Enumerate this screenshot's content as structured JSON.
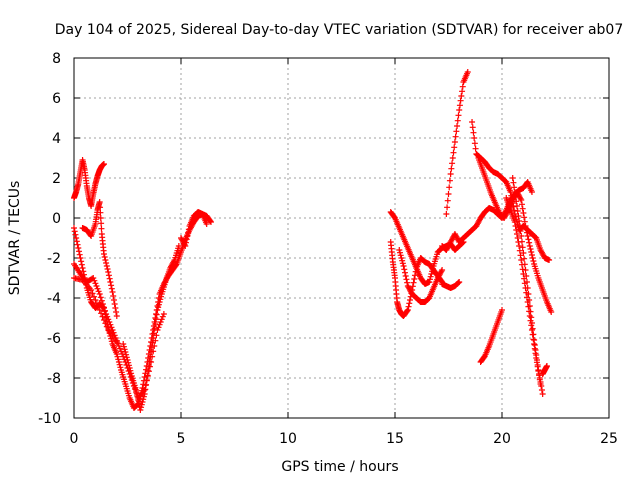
{
  "chart_data": {
    "type": "scatter",
    "title": "Day 104 of 2025, Sidereal Day-to-day VTEC variation (SDTVAR) for receiver ab07",
    "xlabel": "GPS time / hours",
    "ylabel": "SDTVAR / TECUs",
    "xlim": [
      0,
      25
    ],
    "ylim": [
      -10,
      8
    ],
    "xticks": [
      "0",
      "5",
      "10",
      "15",
      "20",
      "25"
    ],
    "yticks": [
      "-10",
      "-8",
      "-6",
      "-4",
      "-2",
      "0",
      "2",
      "4",
      "6",
      "8"
    ],
    "grid": true,
    "marker": "+",
    "color": "#ff0000",
    "series": [
      {
        "x": [
          0.0,
          0.1,
          0.2,
          0.3,
          0.4,
          0.5,
          0.6,
          0.7,
          0.8,
          0.9,
          1.0,
          1.1,
          1.2,
          1.3,
          1.4
        ],
        "y": [
          1.0,
          1.3,
          1.7,
          2.3,
          2.9,
          2.4,
          1.6,
          1.0,
          0.6,
          1.2,
          1.7,
          2.1,
          2.4,
          2.6,
          2.7
        ]
      },
      {
        "x": [
          0.0,
          0.2,
          0.4,
          0.6,
          0.8,
          1.0,
          1.2,
          1.4,
          1.6,
          1.8,
          2.0,
          2.2,
          2.4,
          2.6,
          2.8,
          3.0,
          3.2,
          3.4,
          3.6,
          3.8,
          4.0,
          4.2,
          4.4,
          4.6,
          4.8,
          5.0,
          5.2,
          5.4,
          5.6,
          5.8,
          6.0,
          6.2,
          6.4
        ],
        "y": [
          -0.5,
          -1.5,
          -2.5,
          -3.5,
          -4.2,
          -4.5,
          -4.3,
          -4.5,
          -5.5,
          -6.3,
          -6.8,
          -7.6,
          -8.3,
          -9.0,
          -9.5,
          -9.3,
          -8.5,
          -7.4,
          -6.2,
          -5.0,
          -3.8,
          -3.3,
          -2.9,
          -2.6,
          -2.3,
          -1.7,
          -1.1,
          -0.6,
          -0.2,
          0.1,
          0.2,
          0.1,
          -0.2
        ]
      },
      {
        "x": [
          0.0,
          0.3,
          0.6,
          0.9,
          1.2,
          1.5,
          1.8,
          2.1,
          2.4,
          2.7,
          3.0,
          3.3,
          3.6,
          3.9,
          4.2
        ],
        "y": [
          -2.3,
          -2.8,
          -3.2,
          -3.0,
          -3.8,
          -4.8,
          -5.6,
          -6.4,
          -7.2,
          -8.1,
          -9.0,
          -8.6,
          -7.2,
          -5.6,
          -4.8
        ]
      },
      {
        "x": [
          0.4,
          0.6,
          0.8,
          1.0,
          1.1,
          1.2,
          1.3,
          1.4,
          1.6,
          1.8,
          2.0
        ],
        "y": [
          -0.5,
          -0.6,
          -0.9,
          -0.3,
          0.4,
          0.8,
          -0.8,
          -1.8,
          -2.7,
          -3.7,
          -4.9
        ]
      },
      {
        "x": [
          0.0,
          0.4,
          0.8,
          1.2,
          1.6,
          2.0
        ],
        "y": [
          -3.0,
          -3.1,
          -3.6,
          -4.6,
          -5.6,
          -6.2
        ]
      },
      {
        "x": [
          2.3,
          2.5,
          2.7,
          2.9,
          3.1,
          3.3,
          3.5,
          3.7,
          3.9,
          4.1,
          4.3,
          4.5,
          4.7,
          4.9
        ],
        "y": [
          -6.3,
          -7.1,
          -7.9,
          -8.6,
          -9.6,
          -8.8,
          -7.4,
          -6.0,
          -4.6,
          -3.8,
          -3.1,
          -2.5,
          -2.1,
          -1.4
        ]
      },
      {
        "x": [
          5.0,
          5.2,
          5.4,
          5.6,
          5.8,
          6.0,
          6.2
        ],
        "y": [
          -1.0,
          -1.4,
          -0.4,
          0.1,
          0.3,
          0.2,
          -0.3
        ]
      },
      {
        "x": [
          14.8,
          14.9,
          15.0,
          15.1,
          15.2,
          15.3,
          15.4,
          15.6,
          15.8,
          16.0,
          16.2,
          16.4,
          16.6,
          16.8,
          17.0,
          17.2
        ],
        "y": [
          -1.2,
          -2.2,
          -3.0,
          -4.2,
          -4.6,
          -4.8,
          -4.9,
          -4.6,
          -3.6,
          -2.5,
          -2.0,
          -2.2,
          -2.3,
          -2.6,
          -2.9,
          -3.2
        ]
      },
      {
        "x": [
          14.8,
          15.0,
          15.2,
          15.4,
          15.6,
          15.8,
          16.0,
          16.2,
          16.4,
          16.6,
          16.8,
          17.0,
          17.2,
          17.4,
          17.6,
          17.8,
          18.0,
          18.2
        ],
        "y": [
          0.3,
          0.0,
          -0.5,
          -1.0,
          -1.5,
          -2.0,
          -2.5,
          -3.0,
          -3.3,
          -3.2,
          -2.4,
          -1.7,
          -1.5,
          -1.4,
          -1.3,
          -1.6,
          -1.4,
          -1.2
        ]
      },
      {
        "x": [
          15.2,
          15.4,
          15.6,
          15.8,
          16.0,
          16.2,
          16.4,
          16.6,
          16.8,
          17.0,
          17.2
        ],
        "y": [
          -1.6,
          -2.4,
          -3.4,
          -3.8,
          -4.0,
          -4.2,
          -4.2,
          -4.0,
          -3.5,
          -3.0,
          -2.6
        ]
      },
      {
        "x": [
          17.2,
          17.4,
          17.6,
          17.8,
          18.0
        ],
        "y": [
          -3.3,
          -3.4,
          -3.5,
          -3.4,
          -3.2
        ]
      },
      {
        "x": [
          17.2,
          17.4,
          17.6,
          17.8,
          18.0,
          18.2,
          18.4,
          18.6,
          18.8,
          19.0,
          19.2,
          19.4,
          19.6,
          19.8,
          20.0,
          20.2,
          20.4,
          20.6,
          20.8,
          21.0,
          21.2,
          21.4
        ],
        "y": [
          -1.4,
          -1.6,
          -1.2,
          -0.8,
          -1.2,
          -1.0,
          -0.8,
          -0.6,
          -0.4,
          0.0,
          0.3,
          0.5,
          0.4,
          0.2,
          0.0,
          0.4,
          0.9,
          1.2,
          1.4,
          1.5,
          1.8,
          1.3
        ]
      },
      {
        "x": [
          17.4,
          17.6,
          17.8,
          18.0,
          18.2,
          18.4
        ],
        "y": [
          0.2,
          2.2,
          3.8,
          5.4,
          6.8,
          7.3
        ]
      },
      {
        "x": [
          18.6,
          18.8,
          19.0,
          19.2,
          19.4,
          19.6,
          19.8,
          20.0,
          20.2,
          20.4,
          20.6,
          20.8,
          21.0,
          21.2,
          21.4,
          21.6,
          21.8,
          22.0,
          22.2
        ],
        "y": [
          4.8,
          3.2,
          3.0,
          2.8,
          2.5,
          2.3,
          2.2,
          2.0,
          1.8,
          1.3,
          0.2,
          -0.6,
          -0.4,
          -0.6,
          -0.8,
          -1.0,
          -1.6,
          -2.0,
          -2.1
        ]
      },
      {
        "x": [
          18.9,
          19.1,
          19.3,
          19.5,
          19.7,
          19.9,
          20.1,
          20.3,
          20.5,
          20.7,
          20.9,
          21.1,
          21.3,
          21.5,
          21.7,
          21.9,
          22.1,
          22.3
        ],
        "y": [
          3.0,
          2.4,
          1.8,
          1.2,
          0.7,
          0.2,
          0.0,
          0.4,
          0.9,
          1.3,
          0.9,
          -0.4,
          -1.4,
          -2.3,
          -3.0,
          -3.6,
          -4.2,
          -4.7
        ]
      },
      {
        "x": [
          20.2,
          20.4,
          20.6,
          20.8,
          21.0,
          21.2,
          21.4,
          21.6,
          21.8
        ],
        "y": [
          1.0,
          0.4,
          -0.2,
          -1.4,
          -2.8,
          -4.2,
          -5.6,
          -7.0,
          -8.3
        ]
      },
      {
        "x": [
          20.5,
          20.7,
          20.9,
          21.1,
          21.3,
          21.5,
          21.7,
          21.9
        ],
        "y": [
          2.0,
          0.6,
          -0.9,
          -2.6,
          -4.4,
          -6.1,
          -7.6,
          -8.8
        ]
      },
      {
        "x": [
          19.0,
          19.2,
          19.4,
          19.6,
          19.8,
          20.0
        ],
        "y": [
          -7.2,
          -6.9,
          -6.4,
          -5.8,
          -5.2,
          -4.6
        ]
      },
      {
        "x": [
          21.9,
          22.0,
          22.1
        ],
        "y": [
          -7.8,
          -7.6,
          -7.4
        ]
      }
    ]
  }
}
